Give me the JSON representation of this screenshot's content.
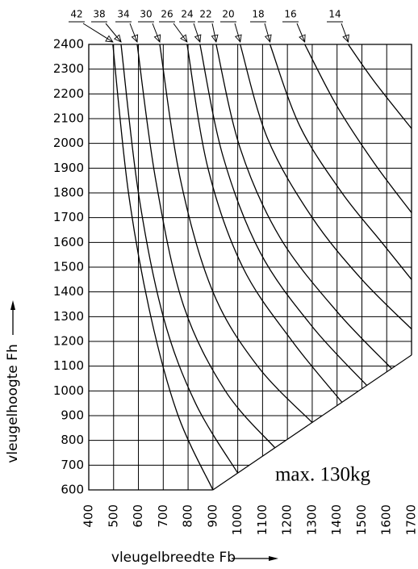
{
  "chart_data": {
    "type": "line",
    "x_label": "vleugelbreedte Fb",
    "y_label": "vleugelhoogte Fh",
    "annotation": "max. 130kg",
    "xlim": [
      400,
      1700
    ],
    "ylim": [
      600,
      2400
    ],
    "xticks": [
      400,
      500,
      600,
      700,
      800,
      900,
      1000,
      1100,
      1200,
      1300,
      1400,
      1500,
      1600,
      1700
    ],
    "yticks": [
      600,
      700,
      800,
      900,
      1000,
      1100,
      1200,
      1300,
      1400,
      1500,
      1600,
      1700,
      1800,
      1900,
      2000,
      2100,
      2200,
      2300,
      2400
    ],
    "grid": true,
    "color": "#000000",
    "limit_line": {
      "x": [
        900,
        1700
      ],
      "y": [
        600,
        1145
      ]
    },
    "series": [
      {
        "name": "42",
        "x": [
          497,
          560,
          650,
          760,
          900
        ],
        "y": [
          2400,
          1800,
          1300,
          900,
          600
        ]
      },
      {
        "name": "38",
        "x": [
          530,
          600,
          700,
          830,
          1000
        ],
        "y": [
          2400,
          1800,
          1300,
          950,
          668
        ]
      },
      {
        "name": "34",
        "x": [
          595,
          670,
          780,
          950,
          1150
        ],
        "y": [
          2400,
          1850,
          1350,
          1000,
          770
        ]
      },
      {
        "name": "30",
        "x": [
          686,
          770,
          900,
          1080,
          1300
        ],
        "y": [
          2400,
          1850,
          1400,
          1100,
          872
        ]
      },
      {
        "name": "26",
        "x": [
          796,
          880,
          1020,
          1220,
          1420
        ],
        "y": [
          2400,
          1900,
          1500,
          1200,
          954
        ]
      },
      {
        "name": "24",
        "x": [
          848,
          940,
          1090,
          1300,
          1520
        ],
        "y": [
          2400,
          1950,
          1560,
          1260,
          1022
        ]
      },
      {
        "name": "22",
        "x": [
          913,
          1010,
          1170,
          1400,
          1620
        ],
        "y": [
          2400,
          1980,
          1620,
          1320,
          1090
        ]
      },
      {
        "name": "20",
        "x": [
          1010,
          1120,
          1300,
          1500,
          1700
        ],
        "y": [
          2400,
          2020,
          1700,
          1450,
          1250
        ]
      },
      {
        "name": "18",
        "x": [
          1130,
          1250,
          1420,
          1580,
          1700
        ],
        "y": [
          2400,
          2070,
          1800,
          1600,
          1450
        ]
      },
      {
        "name": "16",
        "x": [
          1270,
          1400,
          1550,
          1700
        ],
        "y": [
          2400,
          2150,
          1920,
          1720
        ]
      },
      {
        "name": "14",
        "x": [
          1445,
          1550,
          1700
        ],
        "y": [
          2400,
          2250,
          2060
        ]
      }
    ]
  }
}
